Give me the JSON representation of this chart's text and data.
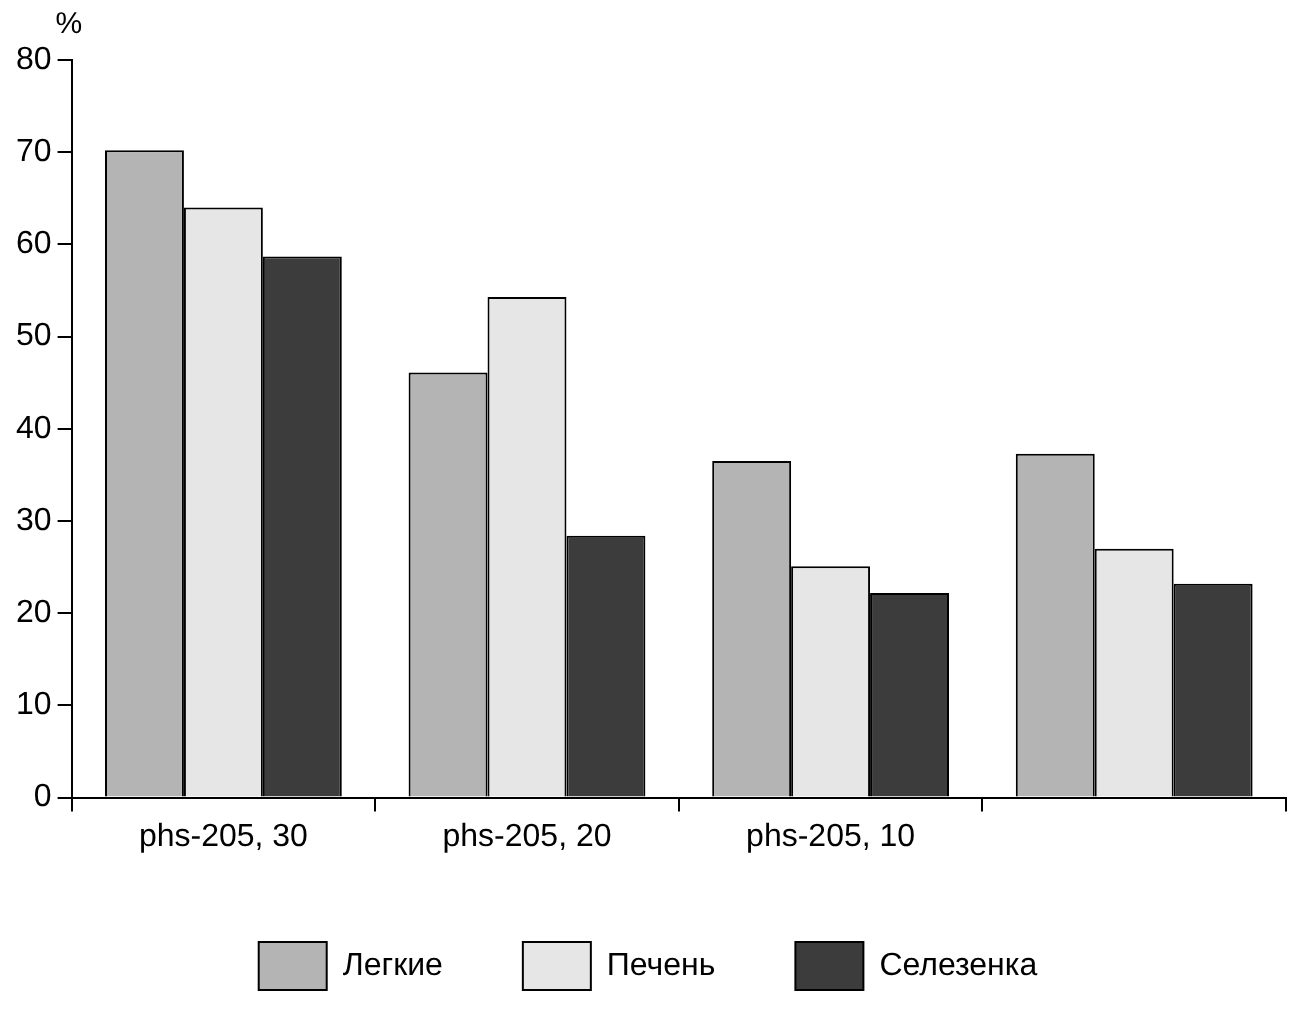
{
  "chart_data": {
    "type": "bar",
    "ylabel": "%",
    "categories": [
      "phs-205, 30",
      "phs-205, 20",
      "phs-205, 10",
      null
    ],
    "series": [
      {
        "name": "Легкие",
        "color": "#b4b4b4",
        "values": [
          70.2,
          46.1,
          36.5,
          37.3
        ]
      },
      {
        "name": "Печень",
        "color": "#e6e6e6",
        "values": [
          64,
          54.3,
          25.1,
          27
        ]
      },
      {
        "name": "Селезенка",
        "color": "#3c3c3c",
        "values": [
          58.7,
          28.4,
          22.2,
          23.2
        ]
      }
    ],
    "ylim": [
      0,
      80
    ],
    "yticks": [
      0,
      10,
      20,
      30,
      40,
      50,
      60,
      70,
      80
    ],
    "grid": false,
    "legend": "bottom"
  }
}
